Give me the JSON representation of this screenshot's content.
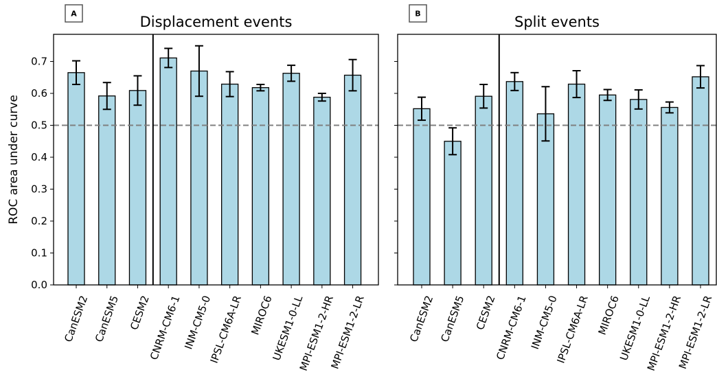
{
  "chart_data": [
    {
      "type": "bar",
      "panel_label": "A",
      "title": "Displacement events",
      "ylabel": "ROC area under curve",
      "xlabel": "",
      "ylim": [
        0,
        0.785
      ],
      "yticks": [
        0.0,
        0.1,
        0.2,
        0.3,
        0.4,
        0.5,
        0.6,
        0.7
      ],
      "ytick_labels": [
        "0.0",
        "0.1",
        "0.2",
        "0.3",
        "0.4",
        "0.5",
        "0.6",
        "0.7"
      ],
      "categories": [
        "CanESM2",
        "CanESM5",
        "CESM2",
        "CNRM-CM6-1",
        "INM-CM5-0",
        "IPSL-CM6A-LR",
        "MIROC6",
        "UKESM1-0-LL",
        "MPI-ESM1-2-HR",
        "MPI-ESM1-2-LR"
      ],
      "values": [
        0.665,
        0.592,
        0.609,
        0.711,
        0.67,
        0.629,
        0.618,
        0.663,
        0.588,
        0.657
      ],
      "errors": [
        0.037,
        0.042,
        0.046,
        0.03,
        0.079,
        0.039,
        0.01,
        0.025,
        0.012,
        0.049
      ],
      "reference_line": 0.5,
      "divider_after_index": 2,
      "bar_color": "#add8e6",
      "reference_color": "#808080"
    },
    {
      "type": "bar",
      "panel_label": "B",
      "title": "Split events",
      "ylabel": "",
      "xlabel": "",
      "ylim": [
        0,
        0.785
      ],
      "yticks": [
        0.0,
        0.1,
        0.2,
        0.3,
        0.4,
        0.5,
        0.6,
        0.7
      ],
      "ytick_labels": [
        "",
        "",
        "",
        "",
        "",
        "",
        "",
        ""
      ],
      "categories": [
        "CanESM2",
        "CanESM5",
        "CESM2",
        "CNRM-CM6-1",
        "INM-CM5-0",
        "IPSL-CM6A-LR",
        "MIROC6",
        "UKESM1-0-LL",
        "MPI-ESM1-2-HR",
        "MPI-ESM1-2-LR"
      ],
      "values": [
        0.552,
        0.45,
        0.591,
        0.637,
        0.536,
        0.629,
        0.595,
        0.581,
        0.556,
        0.652
      ],
      "errors": [
        0.036,
        0.042,
        0.037,
        0.028,
        0.085,
        0.042,
        0.017,
        0.03,
        0.017,
        0.035
      ],
      "reference_line": 0.5,
      "divider_after_index": 2,
      "bar_color": "#add8e6",
      "reference_color": "#808080"
    }
  ]
}
